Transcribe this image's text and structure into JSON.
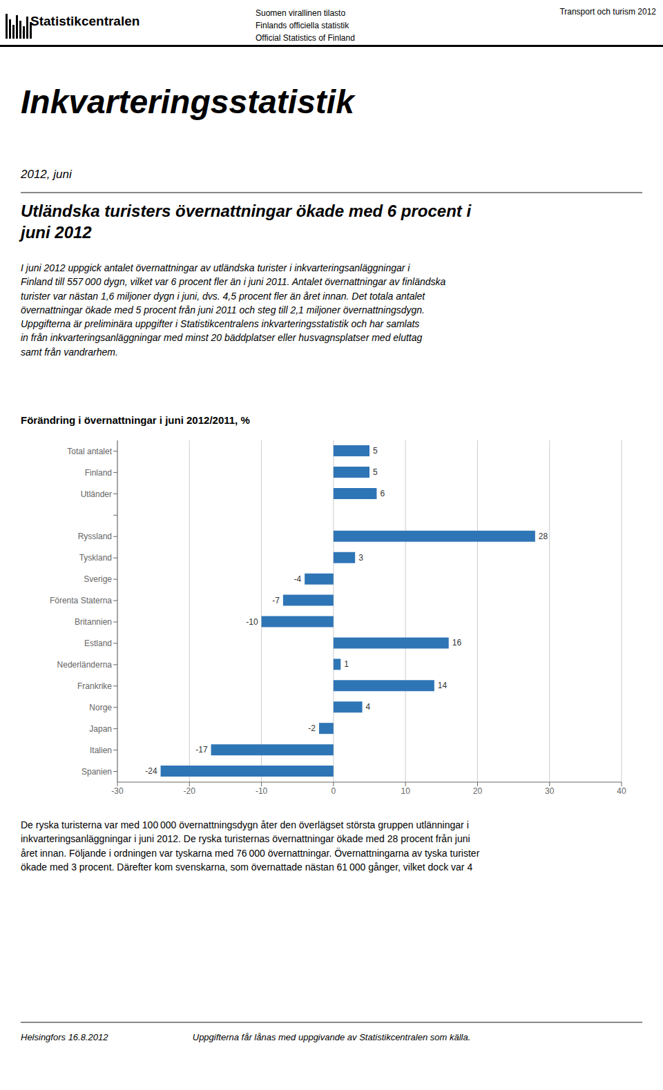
{
  "chart_data": {
    "type": "bar",
    "orientation": "horizontal",
    "title": "Förändring i övernattningar i juni 2012/2011, %",
    "categories": [
      "Total antalet",
      "Finland",
      "Utländer",
      null,
      "Ryssland",
      "Tyskland",
      "Sverige",
      "Förenta Staterna",
      "Britannien",
      "Estland",
      "Nederländerna",
      "Frankrike",
      "Norge",
      "Japan",
      "Italien",
      "Spanien"
    ],
    "values": [
      5,
      5,
      6,
      null,
      28,
      3,
      -4,
      -7,
      -10,
      16,
      1,
      14,
      4,
      -2,
      -17,
      -24
    ],
    "color": "#2E75B6",
    "xlim": [
      -30,
      40
    ],
    "xticks": [
      -30,
      -20,
      -10,
      0,
      10,
      20,
      30,
      40
    ],
    "grid": true,
    "data_labels": true,
    "annotations": [
      "Statistikcentralen",
      "Suomen virallinen tilasto",
      "Finlands officiella statistik",
      "Official Statistics of Finland",
      "Transport och turism 2012",
      "Inkvarteringsstatistik",
      "2012, juni",
      "Utländska turisters övernattningar ökade med 6 procent i\njuni 2012",
      "I juni 2012 uppgick antalet övernattningar av utländska turister i inkvarteringsanläggningar i",
      "Finland till 557 000 dygn, vilket var 6 procent fler än i juni 2011. Antalet övernattningar av finländska",
      "turister var nästan 1,6 miljoner dygn i juni, dvs. 4,5 procent fler än året innan. Det totala antalet",
      "övernattningar ökade med 5 procent från juni 2011 och steg till 2,1 miljoner övernattningsdygn.",
      "Uppgifterna är preliminära uppgifter i Statistikcentralens inkvarteringsstatistik och har samlats",
      "in från inkvarteringsanläggningar med minst 20 bäddplatser eller husvagnsplatser med eluttag",
      "samt från vandrarhem.",
      "De ryska turisterna var med 100 000 övernattningsdygn åter den överlägset största gruppen utlänningar i",
      "inkvarteringsanläggningar i juni 2012. De ryska turisternas övernattningar ökade med 28 procent från juni",
      "året innan. Följande i ordningen var tyskarna med 76 000 övernattningar. Övernattningarna av tyska turister",
      "ökade med 3 procent. Därefter kom svenskarna, som övernattade nästan 61 000 gånger, vilket dock var 4",
      "Helsingfors 16.8.2012",
      "Uppgifterna får lånas med uppgivande av Statistikcentralen som källa."
    ]
  }
}
